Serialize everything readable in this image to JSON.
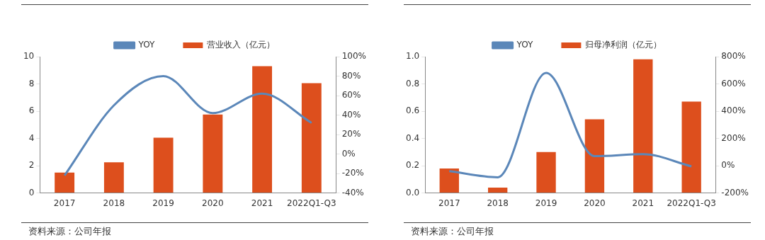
{
  "chart_data": [
    {
      "type": "bar",
      "categories": [
        "2017",
        "2018",
        "2019",
        "2020",
        "2021",
        "2022Q1-Q3"
      ],
      "series": [
        {
          "name": "营业收入（亿元）",
          "color": "#dd4f1d",
          "values": [
            1.5,
            2.25,
            4.05,
            5.75,
            9.3,
            8.05
          ]
        },
        {
          "name": "YOY",
          "type": "line",
          "axis": "y2",
          "color": "#5b87b9",
          "values": [
            -22,
            50,
            80,
            42,
            62,
            32
          ]
        }
      ],
      "ylim": [
        0,
        10
      ],
      "yticks": [
        0,
        2,
        4,
        6,
        8,
        10
      ],
      "y2lim": [
        -40,
        100
      ],
      "y2ticks": [
        {
          "value": -40,
          "label": "-40%"
        },
        {
          "value": -20,
          "label": "-20%"
        },
        {
          "value": 0,
          "label": "0%"
        },
        {
          "value": 20,
          "label": "20%"
        },
        {
          "value": 40,
          "label": "40%"
        },
        {
          "value": 60,
          "label": "60%"
        },
        {
          "value": 80,
          "label": "80%"
        },
        {
          "value": 100,
          "label": "100%"
        }
      ],
      "legend": "top",
      "grid": false,
      "marker": "none",
      "line_style": "solid",
      "annotations": [
        "资料来源：公司年报"
      ]
    },
    {
      "type": "bar",
      "categories": [
        "2017",
        "2018",
        "2019",
        "2020",
        "2021",
        "2022Q1-Q3"
      ],
      "series": [
        {
          "name": "归母净利润（亿元）",
          "color": "#dd4f1d",
          "values": [
            0.18,
            0.04,
            0.3,
            0.54,
            0.98,
            0.67
          ]
        },
        {
          "name": "YOY",
          "type": "line",
          "axis": "y2",
          "color": "#5b87b9",
          "values": [
            -40,
            -85,
            680,
            70,
            85,
            -5
          ]
        }
      ],
      "ylim": [
        0,
        1
      ],
      "yticks": [
        {
          "value": 0,
          "label": "0.0"
        },
        {
          "value": 0.2,
          "label": "0.2"
        },
        {
          "value": 0.4,
          "label": "0.4"
        },
        {
          "value": 0.6,
          "label": "0.6"
        },
        {
          "value": 0.8,
          "label": "0.8"
        },
        {
          "value": 1,
          "label": "1.0"
        }
      ],
      "y2lim": [
        -200,
        800
      ],
      "y2ticks": [
        {
          "value": -200,
          "label": "-200%"
        },
        {
          "value": 0,
          "label": "0%"
        },
        {
          "value": 200,
          "label": "200%"
        },
        {
          "value": 400,
          "label": "400%"
        },
        {
          "value": 600,
          "label": "600%"
        },
        {
          "value": 800,
          "label": "800%"
        }
      ],
      "legend": "top",
      "grid": false,
      "marker": "none",
      "line_style": "solid",
      "annotations": [
        "资料来源：公司年报"
      ]
    }
  ]
}
